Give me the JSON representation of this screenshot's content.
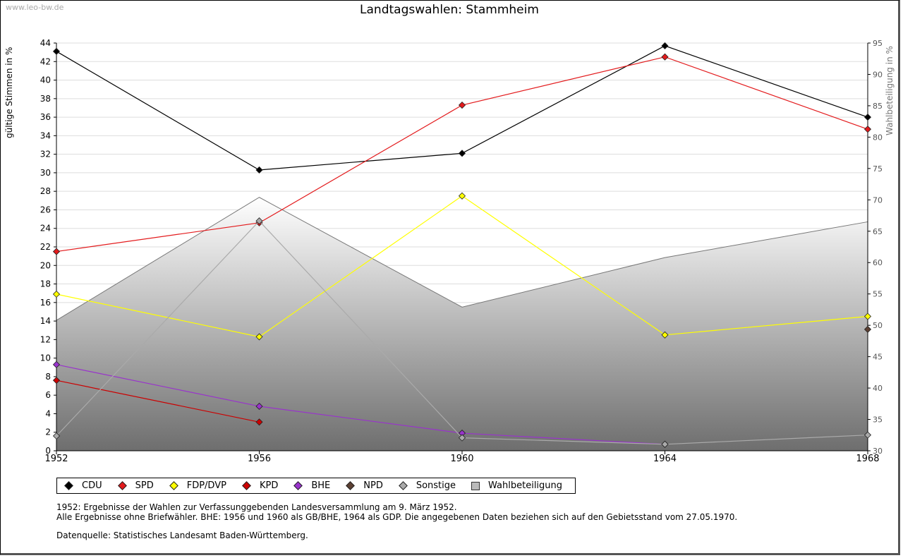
{
  "watermark": "www.leo-bw.de",
  "title": "Landtagswahlen: Stammheim",
  "chart_data": {
    "type": "line",
    "title": "Landtagswahlen: Stammheim",
    "xlabel": "",
    "ylabel": "gültige Stimmen in %",
    "y2label": "Wahlbeteiligung in %",
    "x": [
      "1952",
      "1956",
      "1960",
      "1964",
      "1968"
    ],
    "ylim": [
      0,
      44
    ],
    "y2lim": [
      30,
      95
    ],
    "yticks": [
      "0",
      "2",
      "4",
      "6",
      "8",
      "10",
      "12",
      "14",
      "16",
      "18",
      "20",
      "22",
      "24",
      "26",
      "28",
      "30",
      "32",
      "34",
      "36",
      "38",
      "40",
      "42",
      "44"
    ],
    "y2ticks": [
      "30",
      "35",
      "40",
      "45",
      "50",
      "55",
      "60",
      "65",
      "70",
      "75",
      "80",
      "85",
      "90",
      "95"
    ],
    "grid": true,
    "series": [
      {
        "name": "CDU",
        "color": "#000000",
        "values": [
          43.1,
          30.3,
          32.1,
          43.7,
          36.0
        ]
      },
      {
        "name": "SPD",
        "color": "#e31a1c",
        "values": [
          21.5,
          24.6,
          37.3,
          42.5,
          34.7
        ]
      },
      {
        "name": "FDP/DVP",
        "color": "#ffff00",
        "values": [
          16.9,
          12.3,
          27.5,
          12.5,
          14.5
        ]
      },
      {
        "name": "KPD",
        "color": "#cc0000",
        "values": [
          7.6,
          3.1,
          null,
          null,
          null
        ]
      },
      {
        "name": "BHE",
        "color": "#9933cc",
        "values": [
          9.3,
          4.8,
          1.9,
          0.7,
          null
        ]
      },
      {
        "name": "NPD",
        "color": "#5c4033",
        "values": [
          null,
          null,
          null,
          null,
          13.1
        ]
      },
      {
        "name": "Sonstige",
        "color": "#aaaaaa",
        "values": [
          1.6,
          24.8,
          1.4,
          0.7,
          1.7
        ]
      }
    ],
    "area_series": {
      "name": "Wahlbeteiligung",
      "axis": "right",
      "values": [
        50.8,
        70.4,
        52.9,
        60.8,
        66.5
      ]
    }
  },
  "legend": [
    "CDU",
    "SPD",
    "FDP/DVP",
    "KPD",
    "BHE",
    "NPD",
    "Sonstige",
    "Wahlbeteiligung"
  ],
  "notes": {
    "line1": "1952: Ergebnisse der Wahlen zur Verfassunggebenden Landesversammlung am 9. März 1952.",
    "line2": "Alle Ergebnisse ohne Briefwähler. BHE: 1956 und 1960 als GB/BHE, 1964 als GDP. Die angegebenen Daten beziehen sich auf den Gebietsstand vom 27.05.1970.",
    "line3": "Datenquelle: Statistisches Landesamt Baden-Württemberg."
  }
}
